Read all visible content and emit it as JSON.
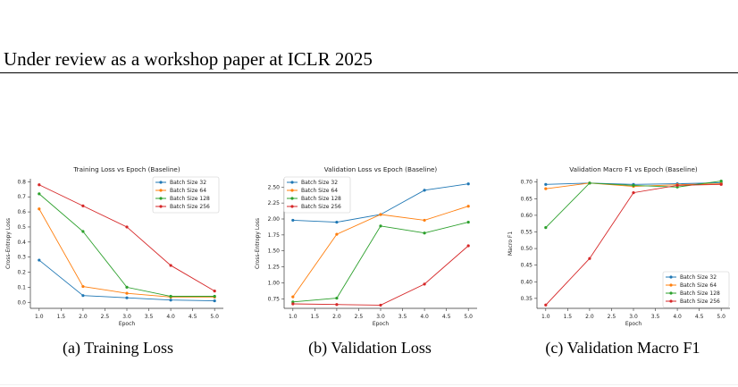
{
  "header": {
    "text": "Under review as a workshop paper at ICLR 2025"
  },
  "legend_labels": [
    "Batch Size 32",
    "Batch Size 64",
    "Batch Size 128",
    "Batch Size 256"
  ],
  "colors": [
    "#1f77b4",
    "#ff7f0e",
    "#2ca02c",
    "#d62728"
  ],
  "captions": [
    "(a)  Training Loss",
    "(b)  Validation Loss",
    "(c)  Validation Macro F1"
  ],
  "chart_data": [
    {
      "type": "line",
      "title": "Training Loss vs Epoch (Baseline)",
      "xlabel": "Epoch",
      "ylabel": "Cross-Entropy Loss",
      "x": [
        1.0,
        2.0,
        3.0,
        4.0,
        5.0
      ],
      "xticks": [
        1.0,
        1.5,
        2.0,
        2.5,
        3.0,
        3.5,
        4.0,
        4.5,
        5.0
      ],
      "xticklabels": [
        "1.0",
        "1.5",
        "2.0",
        "2.5",
        "3.0",
        "3.5",
        "4.0",
        "4.5",
        "5.0"
      ],
      "ylim": [
        -0.04,
        0.82
      ],
      "yticks": [
        0.0,
        0.1,
        0.2,
        0.3,
        0.4,
        0.5,
        0.6,
        0.7,
        0.8
      ],
      "yticklabels": [
        "0.0",
        "0.1",
        "0.2",
        "0.3",
        "0.4",
        "0.5",
        "0.6",
        "0.7",
        "0.8"
      ],
      "legend_position": "top-right",
      "series": [
        {
          "name": "Batch Size 32",
          "values": [
            0.28,
            0.045,
            0.03,
            0.015,
            0.01
          ]
        },
        {
          "name": "Batch Size 64",
          "values": [
            0.62,
            0.105,
            0.06,
            0.035,
            0.035
          ]
        },
        {
          "name": "Batch Size 128",
          "values": [
            0.72,
            0.47,
            0.1,
            0.04,
            0.04
          ]
        },
        {
          "name": "Batch Size 256",
          "values": [
            0.78,
            0.64,
            0.5,
            0.245,
            0.075
          ]
        }
      ]
    },
    {
      "type": "line",
      "title": "Validation Loss vs Epoch (Baseline)",
      "xlabel": "Epoch",
      "ylabel": "Cross-Entropy Loss",
      "x": [
        1.0,
        2.0,
        3.0,
        4.0,
        5.0
      ],
      "xticks": [
        1.0,
        1.5,
        2.0,
        2.5,
        3.0,
        3.5,
        4.0,
        4.5,
        5.0
      ],
      "xticklabels": [
        "1.0",
        "1.5",
        "2.0",
        "2.5",
        "3.0",
        "3.5",
        "4.0",
        "4.5",
        "5.0"
      ],
      "ylim": [
        0.6,
        2.63
      ],
      "yticks": [
        0.75,
        1.0,
        1.25,
        1.5,
        1.75,
        2.0,
        2.25,
        2.5
      ],
      "yticklabels": [
        "0.75",
        "1.00",
        "1.25",
        "1.50",
        "1.75",
        "2.00",
        "2.25",
        "2.50"
      ],
      "legend_position": "top-left",
      "series": [
        {
          "name": "Batch Size 32",
          "values": [
            1.98,
            1.95,
            2.07,
            2.45,
            2.55
          ]
        },
        {
          "name": "Batch Size 64",
          "values": [
            0.78,
            1.76,
            2.07,
            1.98,
            2.2
          ]
        },
        {
          "name": "Batch Size 128",
          "values": [
            0.7,
            0.76,
            1.89,
            1.78,
            1.95
          ]
        },
        {
          "name": "Batch Size 256",
          "values": [
            0.67,
            0.66,
            0.65,
            0.98,
            1.58
          ]
        }
      ]
    },
    {
      "type": "line",
      "title": "Validation Macro F1 vs Epoch (Baseline)",
      "xlabel": "Epoch",
      "ylabel": "Macro F1",
      "x": [
        1.0,
        2.0,
        3.0,
        4.0,
        5.0
      ],
      "xticks": [
        1.0,
        1.5,
        2.0,
        2.5,
        3.0,
        3.5,
        4.0,
        4.5,
        5.0
      ],
      "xticklabels": [
        "1.0",
        "1.5",
        "2.0",
        "2.5",
        "3.0",
        "3.5",
        "4.0",
        "4.5",
        "5.0"
      ],
      "ylim": [
        0.32,
        0.71
      ],
      "yticks": [
        0.35,
        0.4,
        0.45,
        0.5,
        0.55,
        0.6,
        0.65,
        0.7
      ],
      "yticklabels": [
        "0.35",
        "0.40",
        "0.45",
        "0.50",
        "0.55",
        "0.60",
        "0.65",
        "0.70"
      ],
      "legend_position": "bottom-right",
      "series": [
        {
          "name": "Batch Size 32",
          "values": [
            0.693,
            0.697,
            0.693,
            0.695,
            0.698
          ]
        },
        {
          "name": "Batch Size 64",
          "values": [
            0.68,
            0.697,
            0.687,
            0.692,
            0.695
          ]
        },
        {
          "name": "Batch Size 128",
          "values": [
            0.563,
            0.697,
            0.69,
            0.685,
            0.703
          ]
        },
        {
          "name": "Batch Size 256",
          "values": [
            0.33,
            0.47,
            0.668,
            0.69,
            0.693
          ]
        }
      ]
    }
  ]
}
